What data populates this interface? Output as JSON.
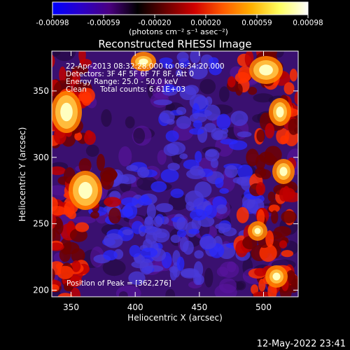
{
  "colorbar": {
    "ticks": [
      "-0.00098",
      "-0.00059",
      "-0.00020",
      "0.00020",
      "0.00059",
      "0.00098"
    ],
    "unit_label": "(photons cm⁻² s⁻¹ asec⁻²)",
    "colormap": [
      "#0000ff",
      "#2a00c8",
      "#4a0080",
      "#000000",
      "#6a0000",
      "#d00000",
      "#ff5a00",
      "#ffb000",
      "#ffff60",
      "#ffffff"
    ]
  },
  "chart_data": {
    "type": "heatmap",
    "title": "Reconstructed RHESSI Image",
    "xlabel": "Heliocentric X (arcsec)",
    "ylabel": "Heliocentric Y (arcsec)",
    "xlim": [
      335,
      527
    ],
    "ylim": [
      195,
      380
    ],
    "x_ticks": [
      350,
      400,
      450,
      500
    ],
    "y_ticks": [
      200,
      250,
      300,
      350
    ],
    "annotations": [
      "22-Apr-2013 08:32:28.000 to 08:34:20.000",
      "Detectors: 3F 4F 5F 6F 7F 8F, Att 0",
      "Energy Range: 25.0 - 50.0 keV",
      "Clean",
      "Total counts: 6.61E+03"
    ],
    "peak_label": "Position of Peak = [362,276]",
    "peak": [
      362,
      276
    ],
    "colors": {
      "bright": "#ffffc0",
      "orange": "#ff8000",
      "red": "#c00000",
      "purple": "#5a14a0",
      "blue": "#2828ff"
    }
  },
  "timestamp": "12-May-2022 23:41"
}
